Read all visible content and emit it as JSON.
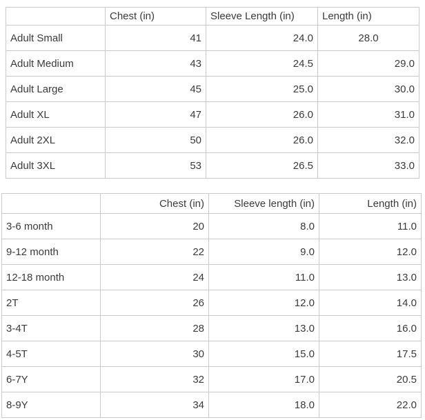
{
  "page": {
    "background_color": "#ffffff",
    "text_color": "#3a3a3a",
    "table_border_color": "#c9c9c9"
  },
  "adult_size_table": {
    "columns": [
      "",
      "Chest (in)",
      "Sleeve Length (in)",
      "Length (in)"
    ],
    "rows": [
      [
        "Adult Small",
        "41",
        "24.0",
        "28.0"
      ],
      [
        "Adult Medium",
        "43",
        "24.5",
        "29.0"
      ],
      [
        "Adult Large",
        "45",
        "25.0",
        "30.0"
      ],
      [
        "Adult XL",
        "47",
        "26.0",
        "31.0"
      ],
      [
        "Adult 2XL",
        "50",
        "26.0",
        "32.0"
      ],
      [
        "Adult 3XL",
        "53",
        "26.5",
        "33.0"
      ]
    ]
  },
  "youth_size_table": {
    "columns": [
      "",
      "Chest (in)",
      "Sleeve length (in)",
      "Length (in)"
    ],
    "rows": [
      [
        "3-6 month",
        "20",
        "8.0",
        "11.0"
      ],
      [
        "9-12 month",
        "22",
        "9.0",
        "12.0"
      ],
      [
        "12-18 month",
        "24",
        "11.0",
        "13.0"
      ],
      [
        "2T",
        "26",
        "12.0",
        "14.0"
      ],
      [
        "3-4T",
        "28",
        "13.0",
        "16.0"
      ],
      [
        "4-5T",
        "30",
        "15.0",
        "17.5"
      ],
      [
        "6-7Y",
        "32",
        "17.0",
        "20.5"
      ],
      [
        "8-9Y",
        "34",
        "18.0",
        "22.0"
      ]
    ]
  }
}
